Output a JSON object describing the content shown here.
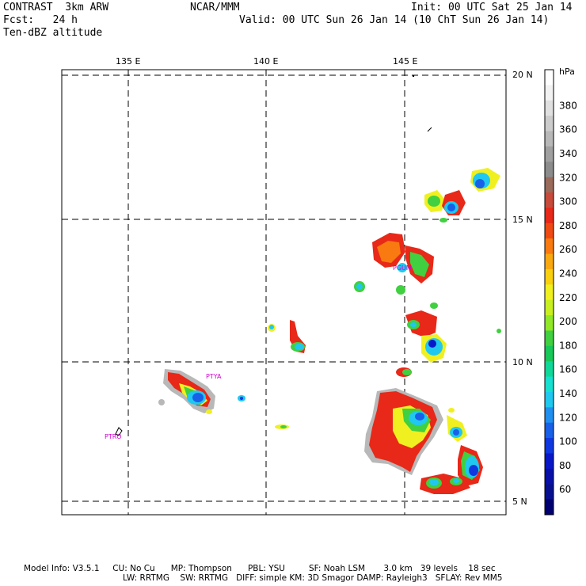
{
  "header": {
    "left_line1": "CONTRAST  3km ARW",
    "left_line2": "Fcst:   24 h",
    "left_line3": "Ten-dBZ altitude",
    "center_line1": "NCAR/MMM",
    "init": "Init: 00 UTC Sat 25 Jan 14",
    "valid": "Valid: 00 UTC Sun 26 Jan 14 (10 ChT Sun 26 Jan 14)"
  },
  "map": {
    "lon_labels": [
      "135 E",
      "140 E",
      "145 E"
    ],
    "lat_labels": [
      "20 N",
      "15 N",
      "10 N",
      "5 N"
    ],
    "stations": [
      "PTYA",
      "PTRO",
      "PGUM"
    ]
  },
  "colorbar": {
    "unit": "hPa",
    "labels": [
      "380",
      "360",
      "340",
      "320",
      "300",
      "280",
      "260",
      "240",
      "220",
      "200",
      "180",
      "160",
      "140",
      "120",
      "100",
      "80",
      "60"
    ],
    "colors": [
      "#ffffff",
      "#f2f2f2",
      "#e0e0e0",
      "#cccccc",
      "#b8b8b8",
      "#a0a0a0",
      "#8c8c8c",
      "#9a6a5a",
      "#c84a3a",
      "#e82818",
      "#f04a14",
      "#f87a10",
      "#f8a810",
      "#f8d010",
      "#f0f020",
      "#c8f020",
      "#90e828",
      "#40d040",
      "#18c858",
      "#10d898",
      "#18e0d0",
      "#20c8f0",
      "#2090f0",
      "#1860e8",
      "#1038e0",
      "#0818c8",
      "#0810a8",
      "#081090",
      "#000070"
    ]
  },
  "footer": {
    "line1": "Model Info: V3.5.1     CU: No Cu      MP: Thompson      PBL: YSU         SF: Noah LSM       3.0 km   39 levels    18 sec",
    "line2": "LW: RRTMG    SW: RRTMG   DIFF: simple KM: 3D Smagor DAMP: Rayleigh3   SFLAY: Rev MM5"
  }
}
